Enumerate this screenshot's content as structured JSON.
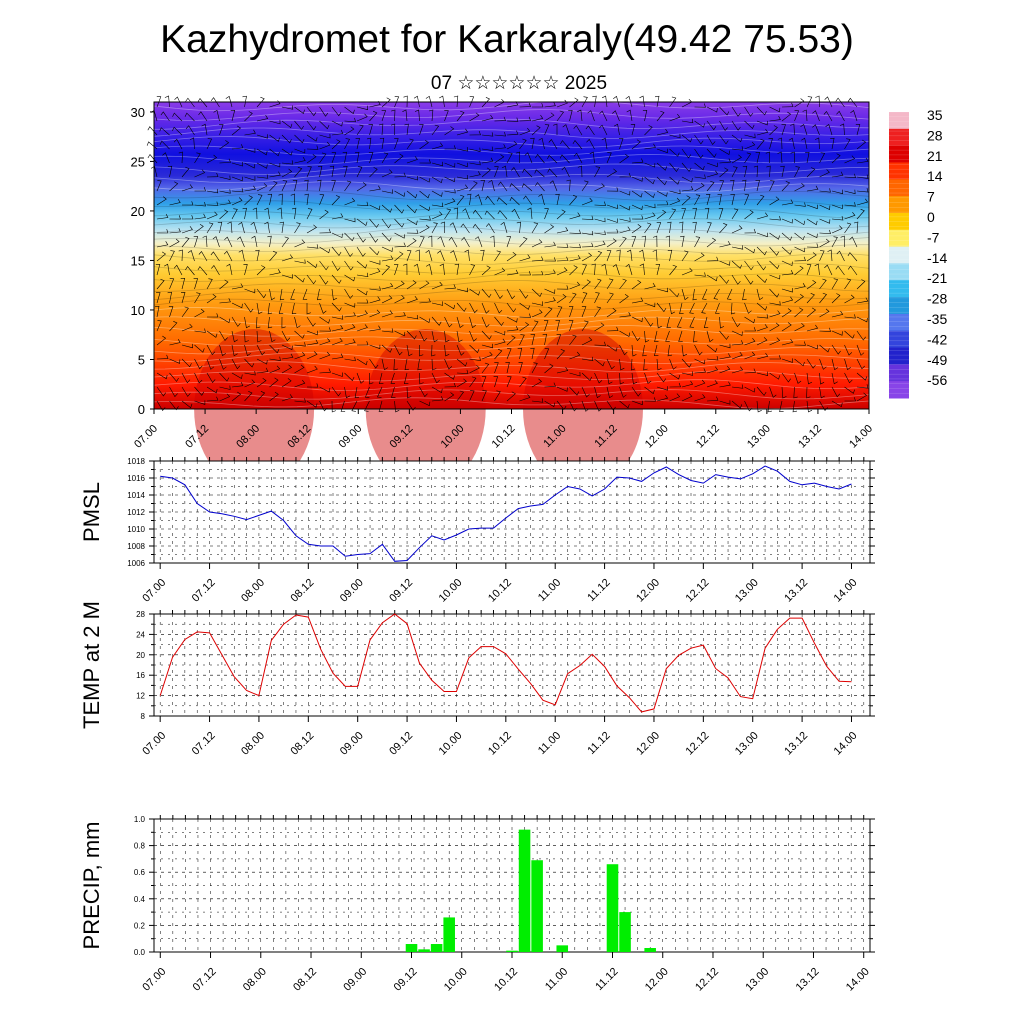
{
  "title": "Kazhydromet for Karkaraly(49.42 75.53)",
  "subtitle": "07 ☆☆☆☆☆☆ 2025",
  "colors": {
    "pmsl": "#0000cc",
    "temp": "#dd0000",
    "precip": "#00ee00"
  },
  "chart_data": [
    {
      "type": "heatmap",
      "name": "upper-air temperature cross-section with wind barbs",
      "xticks": [
        "07.00",
        "07.12",
        "08.00",
        "08.12",
        "09.00",
        "09.12",
        "10.00",
        "10.12",
        "11.00",
        "11.12",
        "12.00",
        "12.12",
        "13.00",
        "13.12",
        "14.00"
      ],
      "yticks": [
        "0",
        "5",
        "10",
        "15",
        "20",
        "25",
        "30"
      ],
      "ylim": [
        0,
        31
      ],
      "colorbar_labels": [
        "35",
        "28",
        "21",
        "14",
        "7",
        "0",
        "-7",
        "-14",
        "-21",
        "-28",
        "-35",
        "-42",
        "-49",
        "-56"
      ],
      "colorbar_range": [
        -63,
        42
      ]
    },
    {
      "type": "line",
      "ylabel": "PMSL",
      "xticks": [
        "07.00",
        "07.12",
        "08.00",
        "08.12",
        "09.00",
        "09.12",
        "10.00",
        "10.12",
        "11.00",
        "11.12",
        "12.00",
        "12.12",
        "13.00",
        "13.12",
        "14.00"
      ],
      "yticks": [
        "1006",
        "1008",
        "1010",
        "1012",
        "1014",
        "1016",
        "1018"
      ],
      "ylim": [
        1006,
        1018
      ],
      "x_step_hours": 3,
      "values": [
        1016.2,
        1016.0,
        1015.2,
        1013.0,
        1012.0,
        1011.8,
        1011.5,
        1011.1,
        1011.6,
        1012.1,
        1011.0,
        1009.2,
        1008.2,
        1008.0,
        1008.0,
        1006.8,
        1007.0,
        1007.1,
        1008.2,
        1006.2,
        1006.3,
        1007.8,
        1009.2,
        1008.7,
        1009.3,
        1010.0,
        1010.1,
        1010.1,
        1011.3,
        1012.4,
        1012.7,
        1012.9,
        1014.0,
        1015.0,
        1014.7,
        1013.9,
        1014.7,
        1016.1,
        1016.0,
        1015.6,
        1016.6,
        1017.3,
        1016.4,
        1015.7,
        1015.4,
        1016.4,
        1016.1,
        1015.9,
        1016.5,
        1017.4,
        1016.8,
        1015.6,
        1015.2,
        1015.4,
        1015.0,
        1014.7,
        1015.3
      ]
    },
    {
      "type": "line",
      "ylabel": "TEMP at 2 M",
      "xticks": [
        "07.00",
        "07.12",
        "08.00",
        "08.12",
        "09.00",
        "09.12",
        "10.00",
        "10.12",
        "11.00",
        "11.12",
        "12.00",
        "12.12",
        "13.00",
        "13.12",
        "14.00"
      ],
      "yticks": [
        "8",
        "12",
        "16",
        "20",
        "24",
        "28"
      ],
      "ylim": [
        8,
        28
      ],
      "x_step_hours": 3,
      "values": [
        12,
        19.5,
        23,
        24.5,
        24.3,
        20,
        15.7,
        13,
        12,
        22.8,
        26,
        27.8,
        27.4,
        21.1,
        16.4,
        13.8,
        13.8,
        22.9,
        26.3,
        28,
        26.1,
        18.4,
        15,
        12.8,
        12.8,
        19.4,
        21.6,
        21.6,
        20.2,
        17.2,
        14.4,
        11.1,
        10.2,
        16.3,
        17.9,
        20.1,
        17.7,
        13.9,
        11.6,
        8.8,
        9.4,
        17.3,
        19.9,
        21.3,
        21.9,
        17.3,
        15.5,
        11.8,
        11.4,
        21.3,
        25,
        27.2,
        27.2,
        22.3,
        17.7,
        14.8,
        14.7
      ]
    },
    {
      "type": "bar",
      "ylabel": "PRECIP, mm",
      "xticks": [
        "07.00",
        "07.12",
        "08.00",
        "08.12",
        "09.00",
        "09.12",
        "10.00",
        "10.12",
        "11.00",
        "11.12",
        "12.00",
        "12.12",
        "13.00",
        "13.12",
        "14.00"
      ],
      "yticks": [
        "0.0",
        "0.2",
        "0.4",
        "0.6",
        "0.8",
        "1.0"
      ],
      "ylim": [
        0,
        1
      ],
      "x_step_hours": 3,
      "values": [
        0,
        0,
        0,
        0,
        0,
        0,
        0,
        0,
        0,
        0,
        0,
        0,
        0,
        0,
        0,
        0,
        0,
        0,
        0,
        0,
        0.06,
        0.02,
        0.06,
        0.26,
        0,
        0,
        0,
        0,
        0.01,
        0.92,
        0.69,
        0,
        0.05,
        0,
        0,
        0,
        0.66,
        0.3,
        0,
        0.03,
        0,
        0,
        0,
        0,
        0,
        0,
        0,
        0,
        0,
        0,
        0,
        0,
        0,
        0,
        0,
        0
      ]
    }
  ]
}
